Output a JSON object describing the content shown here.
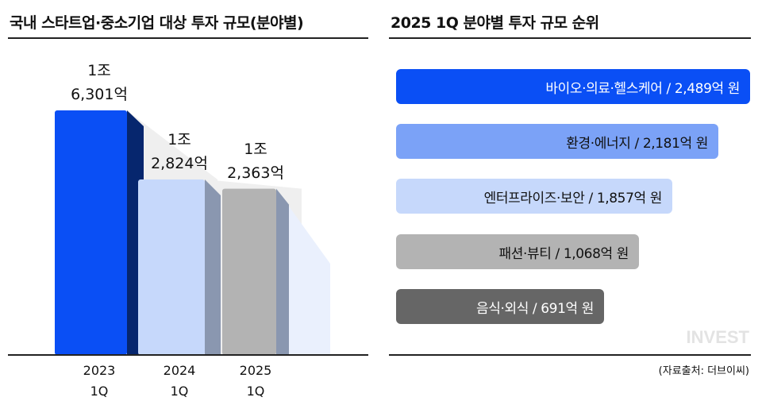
{
  "left_title": "국내 스타트업·중소기업 대상 투자 규모(분야별)",
  "right_title": "2025 1Q 분야별 투자 규모 순위",
  "source": "(자료출처: 더브이씨)",
  "watermark": "INVEST",
  "chart_data": [
    {
      "type": "bar",
      "title": "국내 스타트업·중소기업 대상 투자 규모(분야별)",
      "unit": "억 원",
      "categories": [
        "2023 1Q",
        "2024 1Q",
        "2025 1Q"
      ],
      "years": [
        "2023",
        "2024",
        "2025"
      ],
      "quarters": [
        "1Q",
        "1Q",
        "1Q"
      ],
      "values": [
        16301,
        12824,
        12363
      ],
      "labels_line1": [
        "1조",
        "1조",
        "1조"
      ],
      "labels_line2": [
        "6,301억",
        "2,824억",
        "2,363억"
      ],
      "colors": [
        "#0a4ff5",
        "#c6d8fb",
        "#b3b3b3"
      ],
      "side_colors": [
        "#06266e",
        "#8a97b0",
        "#8a97b0"
      ],
      "ylim": [
        4000,
        16301
      ]
    },
    {
      "type": "bar",
      "orientation": "horizontal",
      "title": "2025 1Q 분야별 투자 규모 순위",
      "unit": "억 원",
      "categories": [
        "바이오·의료·헬스케어",
        "환경·에너지",
        "엔터프라이즈·보안",
        "패션·뷰티",
        "음식·외식"
      ],
      "values": [
        2489,
        2181,
        1857,
        1068,
        691
      ],
      "labels": [
        "바이오·의료·헬스케어 / 2,489억 원",
        "환경·에너지 / 2,181억 원",
        "엔터프라이즈·보안 / 1,857억 원",
        "패션·뷰티 / 1,068억 원",
        "음식·외식 / 691억 원"
      ],
      "colors": [
        "#0a4ff5",
        "#7ba2f7",
        "#c6d8fb",
        "#b3b3b3",
        "#666666"
      ],
      "text_colors": [
        "#ffffff",
        "#111111",
        "#111111",
        "#111111",
        "#ffffff"
      ]
    }
  ]
}
